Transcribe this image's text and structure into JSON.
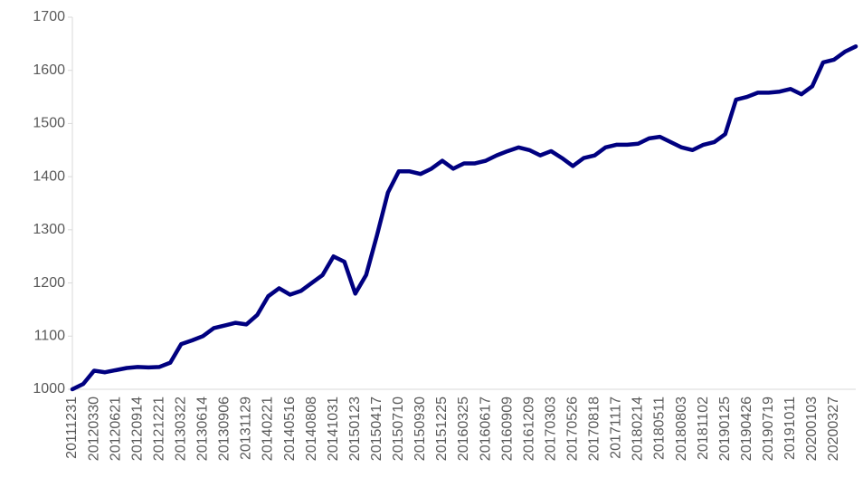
{
  "chart_data": {
    "type": "line",
    "categories": [
      "20111231",
      null,
      "20120330",
      null,
      "20120621",
      null,
      "20120914",
      null,
      "20121221",
      null,
      "20130322",
      null,
      "20130614",
      null,
      "20130906",
      null,
      "20131129",
      null,
      "20140221",
      null,
      "20140516",
      null,
      "20140808",
      null,
      "20141031",
      null,
      "20150123",
      null,
      "20150417",
      null,
      "20150710",
      null,
      "20150930",
      null,
      "20151225",
      null,
      "20160325",
      null,
      "20160617",
      null,
      "20160909",
      null,
      "20161209",
      null,
      "20170303",
      null,
      "20170526",
      null,
      "20170818",
      null,
      "20171117",
      null,
      "20180214",
      null,
      "20180511",
      null,
      "20180803",
      null,
      "20181102",
      null,
      "20190125",
      null,
      "20190426",
      null,
      "20190719",
      null,
      "20191011",
      null,
      "20200103",
      null,
      "20200327",
      null,
      null
    ],
    "series": [
      {
        "color": "#000080",
        "values": [
          1000,
          1010,
          1035,
          1032,
          1036,
          1040,
          1042,
          1041,
          1042,
          1050,
          1085,
          1092,
          1100,
          1115,
          1120,
          1125,
          1122,
          1140,
          1175,
          1190,
          1178,
          1185,
          1200,
          1215,
          1250,
          1240,
          1180,
          1215,
          1290,
          1370,
          1410,
          1410,
          1405,
          1415,
          1430,
          1415,
          1425,
          1425,
          1430,
          1440,
          1448,
          1455,
          1450,
          1440,
          1448,
          1435,
          1420,
          1435,
          1440,
          1455,
          1460,
          1460,
          1462,
          1472,
          1475,
          1465,
          1455,
          1450,
          1460,
          1465,
          1480,
          1545,
          1550,
          1558,
          1558,
          1560,
          1565,
          1555,
          1570,
          1615,
          1620,
          1635,
          1645
        ]
      }
    ],
    "ylim": [
      1000,
      1700
    ],
    "yticks": [
      1000,
      1100,
      1200,
      1300,
      1400,
      1500,
      1600,
      1700
    ],
    "grid": false
  }
}
